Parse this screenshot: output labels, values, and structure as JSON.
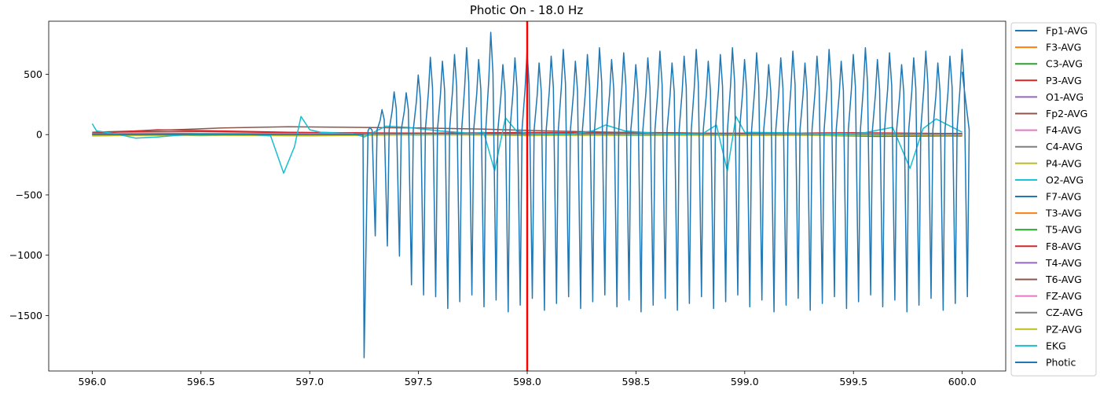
{
  "chart_data": {
    "type": "line",
    "title": "Photic On - 18.0 Hz",
    "xlabel": "",
    "ylabel": "",
    "xlim": [
      595.8,
      600.2
    ],
    "ylim": [
      -1960,
      940
    ],
    "xticks": [
      596.0,
      596.5,
      597.0,
      597.5,
      598.0,
      598.5,
      599.0,
      599.5,
      600.0
    ],
    "xtick_labels": [
      "596.0",
      "596.5",
      "597.0",
      "597.5",
      "598.0",
      "598.5",
      "599.0",
      "599.5",
      "600.0"
    ],
    "yticks": [
      500,
      0,
      -500,
      -1000,
      -1500
    ],
    "ytick_labels": [
      "500",
      "0",
      "−500",
      "−1000",
      "−1500"
    ],
    "grid": false,
    "legend_position": "outside-right",
    "marker_line": {
      "x": 598.0,
      "color": "#ff0000"
    },
    "series": [
      {
        "name": "Fp1-AVG",
        "color": "#1f77b4",
        "x": [
          596.0,
          596.5,
          597.0,
          597.5,
          598.0,
          598.5,
          599.0,
          599.5,
          600.0
        ],
        "y": [
          -5,
          5,
          -3,
          8,
          -2,
          6,
          -4,
          3,
          -6
        ]
      },
      {
        "name": "F3-AVG",
        "color": "#ff7f0e",
        "x": [
          596.0,
          596.5,
          597.0,
          597.5,
          598.0,
          598.5,
          599.0,
          599.5,
          600.0
        ],
        "y": [
          10,
          8,
          12,
          9,
          6,
          10,
          7,
          9,
          5
        ]
      },
      {
        "name": "C3-AVG",
        "color": "#2ca02c",
        "x": [
          596.0,
          596.5,
          597.0,
          597.5,
          598.0,
          598.5,
          599.0,
          599.5,
          600.0
        ],
        "y": [
          5,
          10,
          6,
          4,
          8,
          3,
          6,
          2,
          4
        ]
      },
      {
        "name": "P3-AVG",
        "color": "#d62728",
        "x": [
          596.0,
          596.5,
          597.0,
          597.5,
          598.0,
          598.5,
          599.0,
          599.5,
          600.0
        ],
        "y": [
          20,
          25,
          15,
          12,
          18,
          14,
          10,
          16,
          8
        ]
      },
      {
        "name": "O1-AVG",
        "color": "#9467bd",
        "x": [
          596.0,
          596.5,
          597.0,
          597.5,
          598.0,
          598.5,
          599.0,
          599.5,
          600.0
        ],
        "y": [
          -10,
          5,
          -5,
          10,
          -8,
          4,
          -6,
          2,
          -12
        ]
      },
      {
        "name": "Fp2-AVG",
        "color": "#8c564b",
        "x": [
          596.0,
          596.3,
          596.6,
          596.9,
          597.2,
          597.5,
          597.8,
          598.1,
          598.4,
          598.7,
          599.0,
          599.3,
          599.6,
          600.0
        ],
        "y": [
          20,
          35,
          55,
          65,
          60,
          55,
          45,
          30,
          20,
          15,
          5,
          -5,
          -15,
          -10
        ]
      },
      {
        "name": "F4-AVG",
        "color": "#e377c2",
        "x": [
          596.0,
          596.5,
          597.0,
          597.5,
          598.0,
          598.5,
          599.0,
          599.5,
          600.0
        ],
        "y": [
          8,
          10,
          6,
          12,
          5,
          9,
          7,
          11,
          6
        ]
      },
      {
        "name": "C4-AVG",
        "color": "#7f7f7f",
        "x": [
          596.0,
          596.5,
          597.0,
          597.5,
          598.0,
          598.5,
          599.0,
          599.5,
          600.0
        ],
        "y": [
          3,
          6,
          2,
          5,
          4,
          7,
          3,
          5,
          2
        ]
      },
      {
        "name": "P4-AVG",
        "color": "#bcbd22",
        "x": [
          596.0,
          596.5,
          597.0,
          597.5,
          598.0,
          598.5,
          599.0,
          599.5,
          600.0
        ],
        "y": [
          -5,
          -2,
          -8,
          0,
          -4,
          -6,
          -3,
          -5,
          0
        ]
      },
      {
        "name": "O2-AVG",
        "color": "#17becf",
        "x": [
          596.0,
          596.5,
          597.0,
          597.5,
          598.0,
          598.5,
          599.0,
          599.5,
          600.0
        ],
        "y": [
          10,
          -8,
          6,
          -4,
          8,
          -6,
          4,
          -10,
          6
        ]
      },
      {
        "name": "F7-AVG",
        "color": "#1f77b4",
        "x": [
          596.0,
          596.5,
          597.0,
          597.5,
          598.0,
          598.5,
          599.0,
          599.5,
          600.0
        ],
        "y": [
          2,
          4,
          -2,
          5,
          0,
          3,
          -3,
          2,
          0
        ]
      },
      {
        "name": "T3-AVG",
        "color": "#ff7f0e",
        "x": [
          596.0,
          596.5,
          597.0,
          597.5,
          598.0,
          598.5,
          599.0,
          599.5,
          600.0
        ],
        "y": [
          5,
          3,
          7,
          4,
          6,
          2,
          5,
          3,
          4
        ]
      },
      {
        "name": "T5-AVG",
        "color": "#2ca02c",
        "x": [
          596.0,
          596.5,
          597.0,
          597.5,
          598.0,
          598.5,
          599.0,
          599.5,
          600.0
        ],
        "y": [
          0,
          4,
          2,
          6,
          1,
          3,
          0,
          4,
          2
        ]
      },
      {
        "name": "F8-AVG",
        "color": "#d62728",
        "x": [
          596.0,
          596.3,
          596.6,
          596.9,
          597.2,
          597.5,
          598.0,
          598.5,
          599.0,
          599.5,
          600.0
        ],
        "y": [
          10,
          40,
          30,
          20,
          15,
          12,
          10,
          8,
          12,
          6,
          10
        ]
      },
      {
        "name": "T4-AVG",
        "color": "#9467bd",
        "x": [
          596.0,
          596.5,
          597.0,
          597.5,
          598.0,
          598.5,
          599.0,
          599.5,
          600.0
        ],
        "y": [
          -4,
          2,
          -6,
          4,
          -2,
          5,
          -3,
          1,
          -5
        ]
      },
      {
        "name": "T6-AVG",
        "color": "#8c564b",
        "x": [
          596.0,
          596.5,
          597.0,
          597.5,
          598.0,
          598.5,
          599.0,
          599.5,
          600.0
        ],
        "y": [
          4,
          8,
          2,
          6,
          3,
          7,
          1,
          5,
          0
        ]
      },
      {
        "name": "FZ-AVG",
        "color": "#e377c2",
        "x": [
          596.0,
          596.5,
          597.0,
          597.5,
          598.0,
          598.5,
          599.0,
          599.5,
          600.0
        ],
        "y": [
          6,
          4,
          8,
          3,
          5,
          7,
          4,
          6,
          3
        ]
      },
      {
        "name": "CZ-AVG",
        "color": "#7f7f7f",
        "x": [
          596.0,
          596.5,
          597.0,
          597.5,
          598.0,
          598.5,
          599.0,
          599.5,
          600.0
        ],
        "y": [
          2,
          5,
          1,
          4,
          3,
          6,
          2,
          4,
          1
        ]
      },
      {
        "name": "PZ-AVG",
        "color": "#bcbd22",
        "x": [
          596.0,
          596.5,
          597.0,
          597.5,
          598.0,
          598.5,
          599.0,
          599.5,
          600.0
        ],
        "y": [
          -8,
          -4,
          -10,
          -2,
          -6,
          -3,
          -7,
          -5,
          -4
        ]
      },
      {
        "name": "EKG",
        "color": "#17becf",
        "x": [
          596.0,
          596.02,
          596.1,
          596.2,
          596.3,
          596.5,
          596.7,
          596.82,
          596.88,
          596.93,
          596.96,
          597.0,
          597.05,
          597.2,
          597.25,
          597.35,
          597.45,
          597.6,
          597.75,
          597.8,
          597.85,
          597.9,
          597.95,
          598.0,
          598.2,
          598.3,
          598.36,
          598.45,
          598.6,
          598.8,
          598.87,
          598.92,
          598.96,
          599.0,
          599.2,
          599.45,
          599.55,
          599.68,
          599.76,
          599.82,
          599.88,
          600.0
        ],
        "y": [
          90,
          30,
          10,
          -30,
          -20,
          10,
          5,
          -10,
          -320,
          -100,
          150,
          40,
          20,
          10,
          -20,
          70,
          60,
          30,
          10,
          20,
          -300,
          140,
          30,
          10,
          5,
          30,
          80,
          30,
          10,
          0,
          80,
          -300,
          150,
          20,
          15,
          5,
          15,
          60,
          -280,
          50,
          130,
          20
        ]
      },
      {
        "name": "Photic",
        "color": "#1f77b4",
        "x": [],
        "y": [],
        "waveform": {
          "onset_x": 597.25,
          "onset_min": -1850,
          "cycle_hz": 18.0,
          "peak_max": 820,
          "peak_typical": 650,
          "trough_typical": -1400,
          "baseline": 0
        }
      }
    ]
  }
}
